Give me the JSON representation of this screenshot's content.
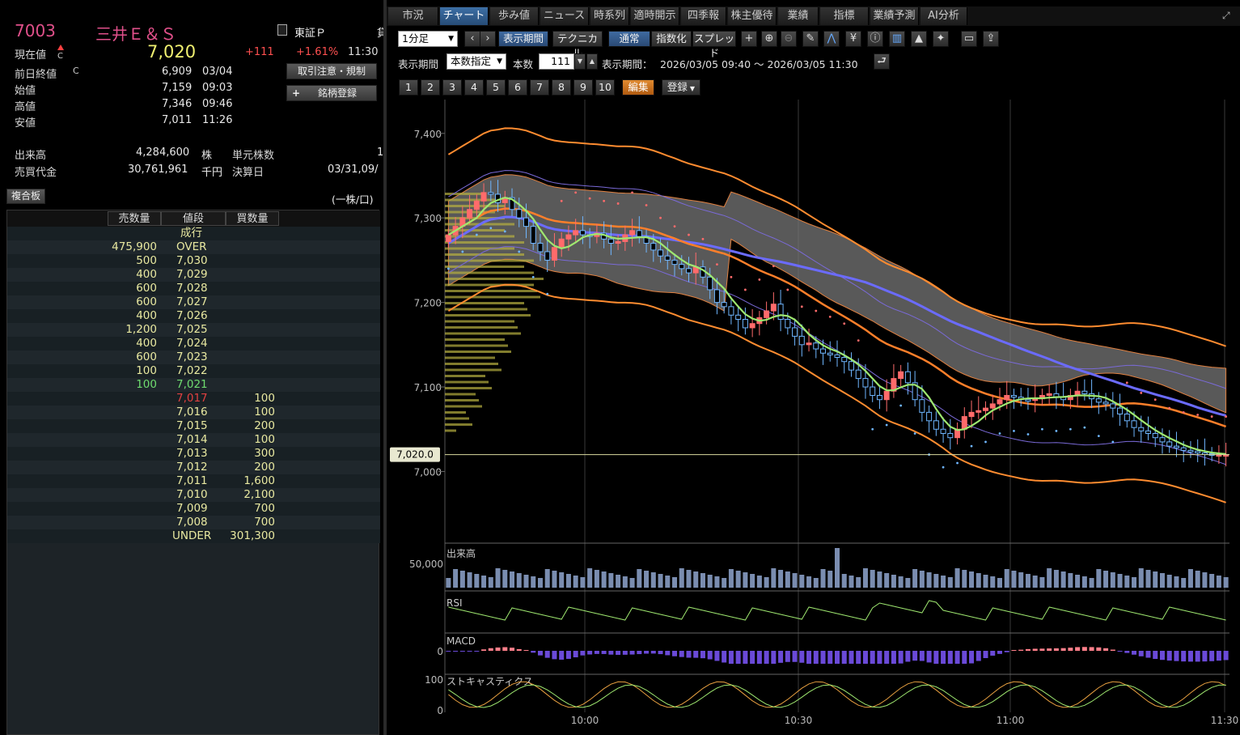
{
  "quote": {
    "code": "7003",
    "name": "三井Ｅ＆Ｓ",
    "exchange": "東証Ｐ",
    "exchange_extra": "貸",
    "current_label": "現在値",
    "current_marker": "C",
    "current_price": "7,020",
    "change": "+111",
    "change_pct": "+1.61%",
    "time": "11:30",
    "rows": [
      {
        "label": "前日終値",
        "marker": "C",
        "value": "6,909",
        "time": "03/04"
      },
      {
        "label": "始値",
        "marker": "",
        "value": "7,159",
        "time": "09:03"
      },
      {
        "label": "高値",
        "marker": "",
        "value": "7,346",
        "time": "09:46"
      },
      {
        "label": "安値",
        "marker": "",
        "value": "7,011",
        "time": "11:26"
      }
    ],
    "volume_label": "出来高",
    "volume": "4,284,600",
    "volume_unit": "株",
    "unit_shares_label": "単元株数",
    "unit_shares": "1",
    "turnover_label": "売買代金",
    "turnover": "30,761,961",
    "turnover_unit": "千円",
    "settlement_label": "決算日",
    "settlement": "03/31,09/",
    "btn_caution": "取引注意・規制",
    "btn_register": "銘柄登録",
    "btn_plus": "+"
  },
  "board": {
    "button": "複合板",
    "unit": "(一株/口)",
    "headers": [
      "売数量",
      "値段",
      "買数量"
    ],
    "rows": [
      {
        "sell": "",
        "price": "成行",
        "buy": ""
      },
      {
        "sell": "475,900",
        "price": "OVER",
        "buy": ""
      },
      {
        "sell": "500",
        "price": "7,030",
        "buy": ""
      },
      {
        "sell": "400",
        "price": "7,029",
        "buy": ""
      },
      {
        "sell": "600",
        "price": "7,028",
        "buy": ""
      },
      {
        "sell": "600",
        "price": "7,027",
        "buy": ""
      },
      {
        "sell": "400",
        "price": "7,026",
        "buy": ""
      },
      {
        "sell": "1,200",
        "price": "7,025",
        "buy": ""
      },
      {
        "sell": "400",
        "price": "7,024",
        "buy": ""
      },
      {
        "sell": "600",
        "price": "7,023",
        "buy": ""
      },
      {
        "sell": "100",
        "price": "7,022",
        "buy": ""
      },
      {
        "sell": "100",
        "price": "7,021",
        "buy": ""
      },
      {
        "sell": "",
        "price": "7,017",
        "buy": "100"
      },
      {
        "sell": "",
        "price": "7,016",
        "buy": "100"
      },
      {
        "sell": "",
        "price": "7,015",
        "buy": "200"
      },
      {
        "sell": "",
        "price": "7,014",
        "buy": "100"
      },
      {
        "sell": "",
        "price": "7,013",
        "buy": "300"
      },
      {
        "sell": "",
        "price": "7,012",
        "buy": "200"
      },
      {
        "sell": "",
        "price": "7,011",
        "buy": "1,600"
      },
      {
        "sell": "",
        "price": "7,010",
        "buy": "2,100"
      },
      {
        "sell": "",
        "price": "7,009",
        "buy": "700"
      },
      {
        "sell": "",
        "price": "7,008",
        "buy": "700"
      },
      {
        "sell": "",
        "price": "UNDER",
        "buy": "301,300"
      }
    ],
    "colors": {
      "normal": "#e8e8a0",
      "last_sell": "#6fdc6f",
      "first_buy": "#e04040"
    }
  },
  "tabs": [
    "市況",
    "チャート",
    "歩み値",
    "ニュース",
    "時系列",
    "適時開示",
    "四季報",
    "株主優待",
    "業績",
    "指標",
    "業績予測",
    "AI分析"
  ],
  "active_tab": "チャート",
  "toolbar": {
    "interval": "1分足",
    "btn_period": "表示期間",
    "btn_technical": "テクニカル",
    "btn_normal": "通常",
    "btn_index": "指数化",
    "btn_spread": "スプレッド",
    "period_label": "表示期間",
    "period_mode": "本数指定",
    "count_label": "本数",
    "count": "111",
    "range_label": "表示期間：",
    "range": "2026/03/05 09:40 ～ 2026/03/05 11:30",
    "presets": [
      "1",
      "2",
      "3",
      "4",
      "5",
      "6",
      "7",
      "8",
      "9",
      "10"
    ],
    "btn_edit": "編集",
    "btn_register": "登録"
  },
  "chart_data": {
    "type": "candlestick",
    "price_axis": {
      "ticks": [
        "7,400",
        "7,300",
        "7,200",
        "7,100",
        "7,000"
      ],
      "ylim": [
        6920,
        7440
      ]
    },
    "current_price_tag": "7,020.0",
    "x_ticks": [
      "10:00",
      "10:30",
      "11:00",
      "11:30"
    ],
    "x_range": [
      "09:40",
      "11:30"
    ],
    "close_series": [
      7280,
      7290,
      7300,
      7310,
      7320,
      7330,
      7328,
      7318,
      7324,
      7310,
      7300,
      7290,
      7270,
      7260,
      7250,
      7265,
      7275,
      7280,
      7285,
      7280,
      7278,
      7282,
      7275,
      7270,
      7272,
      7280,
      7285,
      7278,
      7270,
      7262,
      7255,
      7250,
      7245,
      7240,
      7235,
      7242,
      7230,
      7215,
      7200,
      7195,
      7185,
      7180,
      7170,
      7175,
      7182,
      7190,
      7198,
      7180,
      7170,
      7160,
      7150,
      7152,
      7145,
      7140,
      7138,
      7135,
      7130,
      7120,
      7110,
      7100,
      7090,
      7085,
      7095,
      7110,
      7118,
      7105,
      7085,
      7070,
      7060,
      7050,
      7045,
      7040,
      7050,
      7065,
      7070,
      7072,
      7075,
      7080,
      7085,
      7090,
      7088,
      7085,
      7084,
      7086,
      7090,
      7092,
      7088,
      7085,
      7090,
      7095,
      7092,
      7086,
      7082,
      7080,
      7075,
      7068,
      7060,
      7052,
      7048,
      7045,
      7040,
      7035,
      7030,
      7028,
      7025,
      7024,
      7022,
      7021,
      7020,
      7020,
      7020
    ],
    "panels": [
      {
        "name": "出来高",
        "tick": "50,000"
      },
      {
        "name": "RSI",
        "tick": ""
      },
      {
        "name": "MACD",
        "tick": "0"
      },
      {
        "name": "ストキャスティクス",
        "ticks": [
          "100",
          "0"
        ]
      }
    ],
    "colors": {
      "up": "#ff6b6b",
      "down": "#6fb6ff",
      "ma_fast": "#9fe870",
      "ma_mid": "#ff7f2a",
      "ma_slow": "#6b6bff",
      "cloud": "#777777",
      "bollinger": "#ff8c30"
    }
  }
}
